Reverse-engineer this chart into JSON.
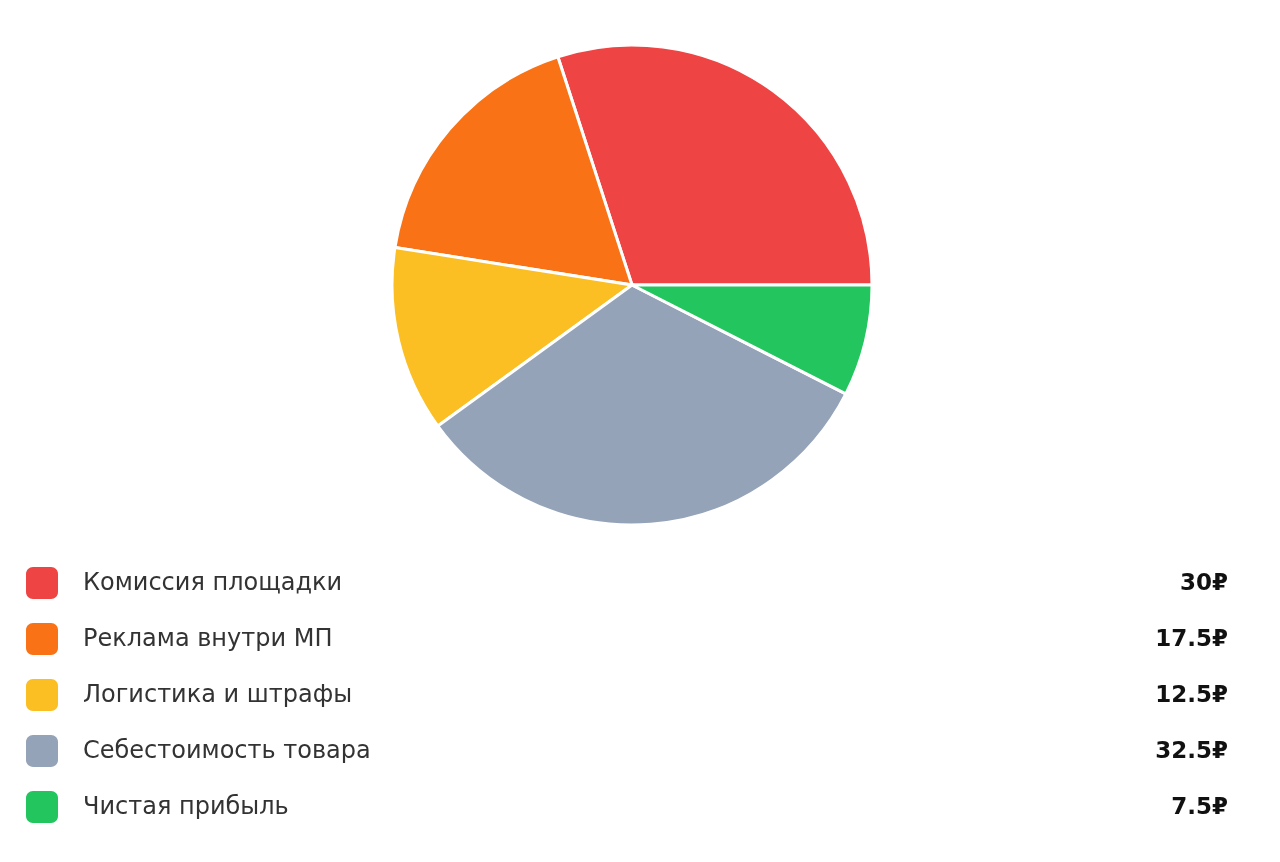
{
  "chart_data": {
    "type": "pie",
    "categories": [
      "Комиссия площадки",
      "Реклама внутри МП",
      "Логистика и штрафы",
      "Себестоимость товара",
      "Чистая прибыль"
    ],
    "values": [
      30,
      17.5,
      12.5,
      32.5,
      7.5
    ],
    "colors": [
      "#ef4444",
      "#f97316",
      "#fbbf24",
      "#94a3b8",
      "#22c55e"
    ],
    "value_labels": [
      "30₽",
      "17.5₽",
      "12.5₽",
      "32.5₽",
      "7.5₽"
    ],
    "legend": "bottom"
  }
}
